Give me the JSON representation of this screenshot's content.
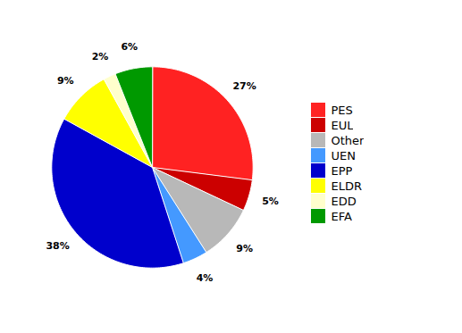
{
  "chart_data": {
    "type": "pie",
    "categories": [
      "PES",
      "EUL",
      "Other",
      "UEN",
      "EPP",
      "ELDR",
      "EDD",
      "EFA"
    ],
    "values": [
      27,
      5,
      9,
      4,
      38,
      9,
      2,
      6
    ],
    "value_labels": [
      "27%",
      "5%",
      "9%",
      "4%",
      "38%",
      "9%",
      "2%",
      "6%"
    ],
    "colors": [
      "#ff2222",
      "#cc0000",
      "#b8b8b8",
      "#4499ff",
      "#0000cc",
      "#ffff00",
      "#ffffcc",
      "#009900"
    ],
    "data_labels": true,
    "legend": "right"
  }
}
